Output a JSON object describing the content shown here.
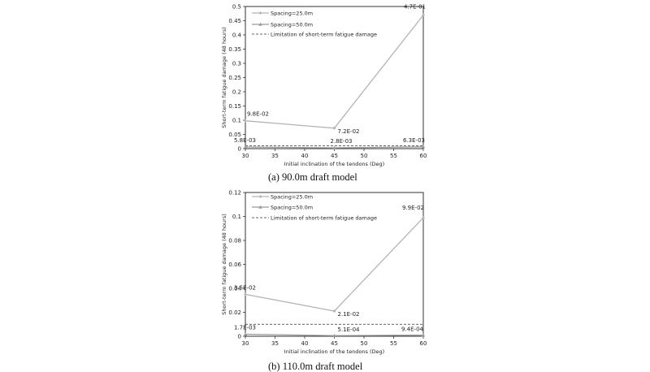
{
  "chart_data": [
    {
      "type": "line",
      "xlabel": "Initial inclination of the tendons (Deg)",
      "ylabel": "Short-term fatigue damage (48 hours)",
      "xlim": [
        30,
        60
      ],
      "ylim": [
        0,
        0.5
      ],
      "xticks": [
        30,
        35,
        40,
        45,
        50,
        55,
        60
      ],
      "yticks": [
        0,
        0.05,
        0.1,
        0.15,
        0.2,
        0.25,
        0.3,
        0.35,
        0.4,
        0.45,
        0.5
      ],
      "ytick_labels": [
        "0",
        "0.05",
        "0.1",
        "0.15",
        "0.2",
        "0.25",
        "0.3",
        "0.35",
        "0.4",
        "0.45",
        "0.5"
      ],
      "x": [
        30,
        45,
        60
      ],
      "series": [
        {
          "name": "Spacing=25.0m",
          "values": [
            0.098,
            0.072,
            0.47
          ],
          "labels": [
            "9.8E-02",
            "7.2E-02",
            "4.7E-01"
          ],
          "color": "#b4b4b4"
        },
        {
          "name": "Spacing=50.0m",
          "values": [
            0.0058,
            0.0028,
            0.0063
          ],
          "labels": [
            "5.8E-03",
            "2.8E-03",
            "6.3E-03"
          ],
          "color": "#9a9a9a"
        }
      ],
      "limit": {
        "name": "Limitation of short-term fatigue damage",
        "value": 0.01
      },
      "legend": "top-left",
      "grid": false,
      "caption": "(a)  90.0m  draft  model"
    },
    {
      "type": "line",
      "xlabel": "Initial inclination of the tendons (Deg)",
      "ylabel": "Short-term fatigue damage (48 hours)",
      "xlim": [
        30,
        60
      ],
      "ylim": [
        0,
        0.12
      ],
      "xticks": [
        30,
        35,
        40,
        45,
        50,
        55,
        60
      ],
      "yticks": [
        0,
        0.02,
        0.04,
        0.06,
        0.08,
        0.1,
        0.12
      ],
      "ytick_labels": [
        "0",
        "0.02",
        "0.04",
        "0.06",
        "0.08",
        "0.1",
        "0.12"
      ],
      "x": [
        30,
        45,
        60
      ],
      "series": [
        {
          "name": "Spacing=25.0m",
          "values": [
            0.035,
            0.021,
            0.099
          ],
          "labels": [
            "3.5E-02",
            "2.1E-02",
            "9.9E-02"
          ],
          "color": "#b4b4b4"
        },
        {
          "name": "Spacing=50.0m",
          "values": [
            0.0017,
            0.00051,
            0.00094
          ],
          "labels": [
            "1.7E-03",
            "5.1E-04",
            "9.4E-04"
          ],
          "color": "#9a9a9a"
        }
      ],
      "limit": {
        "name": "Limitation of short-term fatigue damage",
        "value": 0.01
      },
      "legend": "top-left",
      "grid": false,
      "caption": "(b)  110.0m  draft  model"
    }
  ]
}
